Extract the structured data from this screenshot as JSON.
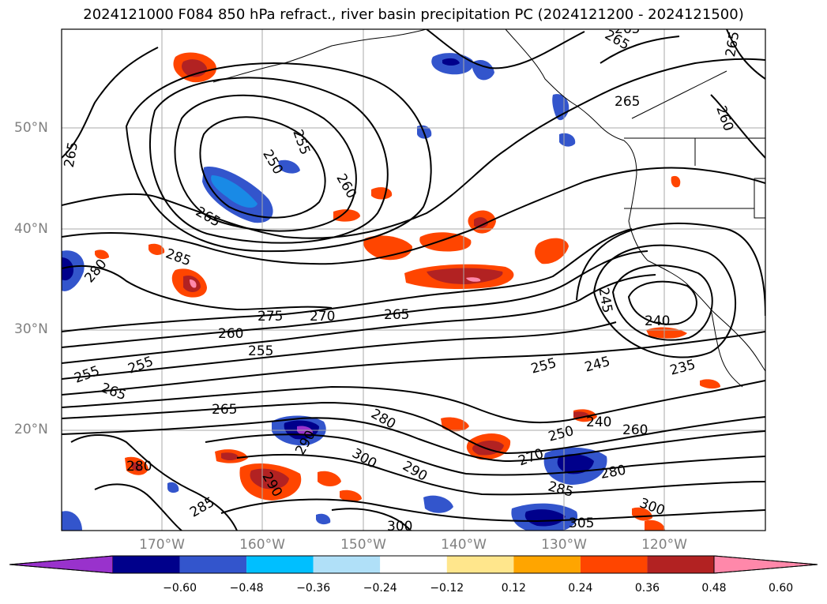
{
  "title": "2024121000 F084 850 hPa refract., river basin precipitation PC (2024121200 - 2024121500)",
  "lat_labels": [
    "50°N",
    "40°N",
    "30°N",
    "20°N"
  ],
  "lon_labels": [
    "170°W",
    "160°W",
    "150°W",
    "140°W",
    "130°W",
    "120°W"
  ],
  "contour_labels": [
    "265",
    "255",
    "250",
    "260",
    "265",
    "285",
    "280",
    "275",
    "270",
    "265",
    "260",
    "255",
    "255",
    "255",
    "265",
    "265",
    "280",
    "290",
    "290",
    "285",
    "300",
    "300",
    "290",
    "280",
    "270",
    "250",
    "240",
    "260",
    "285",
    "280",
    "300",
    "305",
    "255",
    "245",
    "235",
    "240",
    "245",
    "265",
    "265",
    "265",
    "265",
    "260"
  ],
  "colorbar": {
    "ticks": [
      "−0.60",
      "−0.48",
      "−0.36",
      "−0.24",
      "−0.12",
      "0.12",
      "0.24",
      "0.36",
      "0.48",
      "0.60"
    ],
    "colors": [
      "#9932cc",
      "#00008b",
      "#3355cc",
      "#00bfff",
      "#b0e0f8",
      "#ffffff",
      "#ffe68c",
      "#ffa500",
      "#ff4500",
      "#b22222",
      "#ff88aa"
    ],
    "extend": "both"
  },
  "field_colors": {
    "contour": "#000000",
    "grid": "#aaaaaa",
    "coast": "#000000"
  }
}
